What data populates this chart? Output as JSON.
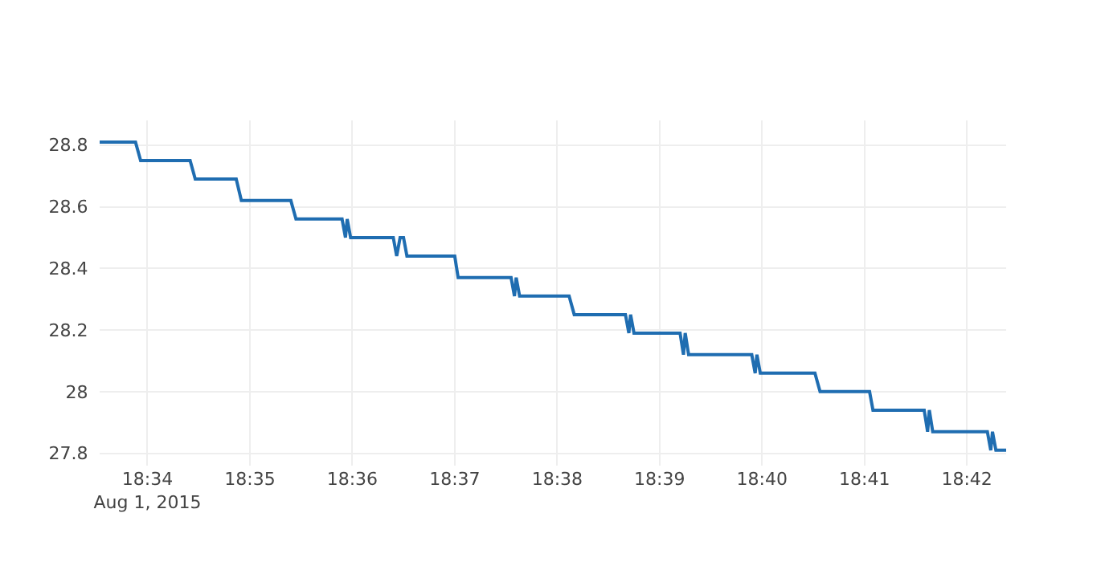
{
  "chart_data": {
    "type": "line",
    "grid": true,
    "line_style": "solid",
    "x": [
      "2015-08-01T18:33:32",
      "2015-08-01T18:33:53",
      "2015-08-01T18:33:56",
      "2015-08-01T18:34:25",
      "2015-08-01T18:34:28",
      "2015-08-01T18:34:52",
      "2015-08-01T18:34:55",
      "2015-08-01T18:35:24",
      "2015-08-01T18:35:27",
      "2015-08-01T18:35:54",
      "2015-08-01T18:35:56",
      "2015-08-01T18:35:57",
      "2015-08-01T18:35:59",
      "2015-08-01T18:36:24",
      "2015-08-01T18:36:26",
      "2015-08-01T18:36:28",
      "2015-08-01T18:36:30",
      "2015-08-01T18:36:32",
      "2015-08-01T18:37:00",
      "2015-08-01T18:37:02",
      "2015-08-01T18:37:33",
      "2015-08-01T18:37:35",
      "2015-08-01T18:37:36",
      "2015-08-01T18:37:38",
      "2015-08-01T18:38:07",
      "2015-08-01T18:38:10",
      "2015-08-01T18:38:40",
      "2015-08-01T18:38:42",
      "2015-08-01T18:38:43",
      "2015-08-01T18:38:45",
      "2015-08-01T18:39:12",
      "2015-08-01T18:39:14",
      "2015-08-01T18:39:15",
      "2015-08-01T18:39:17",
      "2015-08-01T18:39:54",
      "2015-08-01T18:39:56",
      "2015-08-01T18:39:57",
      "2015-08-01T18:39:59",
      "2015-08-01T18:40:31",
      "2015-08-01T18:40:34",
      "2015-08-01T18:41:03",
      "2015-08-01T18:41:05",
      "2015-08-01T18:41:35",
      "2015-08-01T18:41:37",
      "2015-08-01T18:41:38",
      "2015-08-01T18:41:40",
      "2015-08-01T18:42:12",
      "2015-08-01T18:42:14",
      "2015-08-01T18:42:15",
      "2015-08-01T18:42:17",
      "2015-08-01T18:42:23"
    ],
    "series": [
      {
        "color": "#1f6db1",
        "values": [
          28.81,
          28.81,
          28.75,
          28.75,
          28.69,
          28.69,
          28.62,
          28.62,
          28.56,
          28.56,
          28.5,
          28.56,
          28.5,
          28.5,
          28.44,
          28.5,
          28.5,
          28.44,
          28.44,
          28.37,
          28.37,
          28.31,
          28.37,
          28.31,
          28.31,
          28.25,
          28.25,
          28.19,
          28.25,
          28.19,
          28.19,
          28.12,
          28.19,
          28.12,
          28.12,
          28.06,
          28.12,
          28.06,
          28.06,
          28,
          28,
          27.94,
          27.94,
          27.87,
          27.94,
          27.87,
          27.87,
          27.81,
          27.87,
          27.81,
          27.81
        ]
      }
    ],
    "xlim": [
      "2015-08-01T18:33:32",
      "2015-08-01T18:42:23"
    ],
    "xticks": [
      {
        "value": "2015-08-01T18:34",
        "label": "18:34\nAug 1, 2015"
      },
      {
        "value": "2015-08-01T18:35",
        "label": "18:35"
      },
      {
        "value": "2015-08-01T18:36",
        "label": "18:36"
      },
      {
        "value": "2015-08-01T18:37",
        "label": "18:37"
      },
      {
        "value": "2015-08-01T18:38",
        "label": "18:38"
      },
      {
        "value": "2015-08-01T18:39",
        "label": "18:39"
      },
      {
        "value": "2015-08-01T18:40",
        "label": "18:40"
      },
      {
        "value": "2015-08-01T18:41",
        "label": "18:41"
      },
      {
        "value": "2015-08-01T18:42",
        "label": "18:42"
      }
    ],
    "ylim": [
      27.76,
      28.88
    ],
    "yticks": [
      27.8,
      28,
      28.2,
      28.4,
      28.6,
      28.8
    ]
  }
}
